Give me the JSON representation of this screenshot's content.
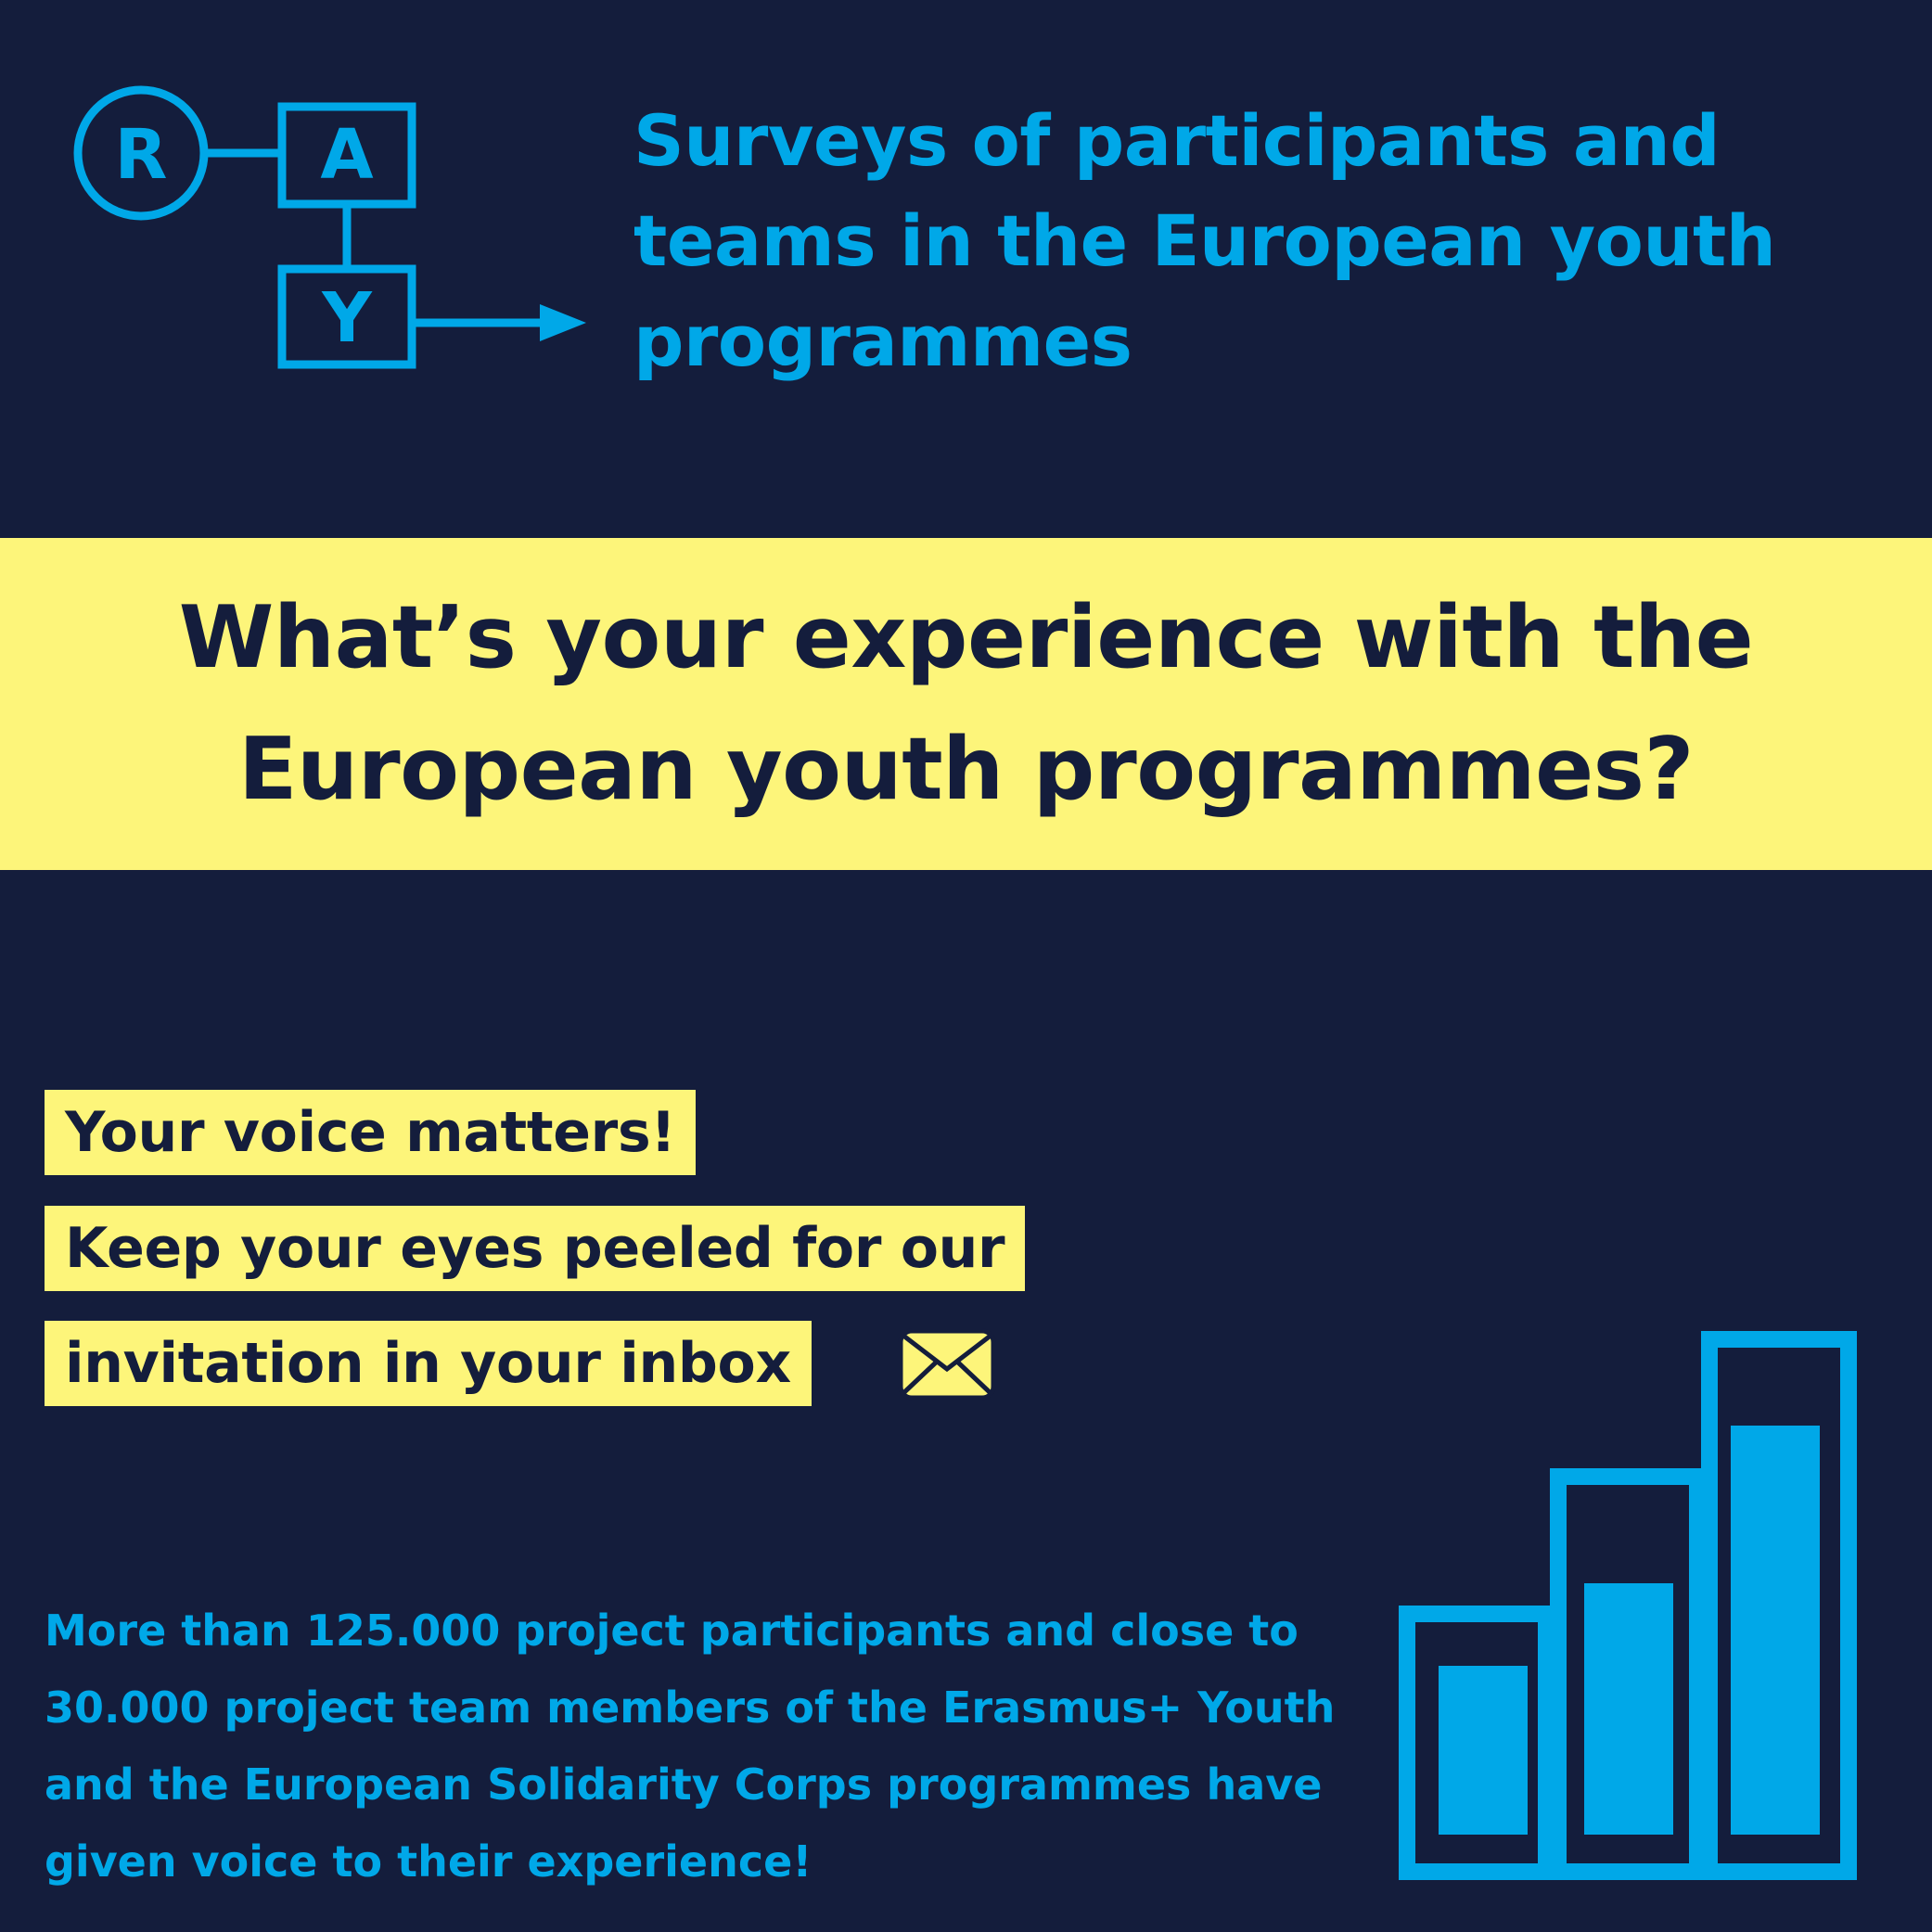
{
  "logo": {
    "letters": [
      "R",
      "A",
      "Y"
    ]
  },
  "header": {
    "title_lines": [
      "Surveys of participants and",
      "teams in the European youth",
      "programmes"
    ]
  },
  "banner": {
    "lines": [
      "What’s your experience with the",
      "European youth programmes?"
    ]
  },
  "callouts": [
    "Your voice matters!",
    "Keep your eyes peeled for our",
    "invitation in your inbox"
  ],
  "footer": {
    "lines": [
      "More than 125.000 project participants and close to",
      "30.000 project team members of the Erasmus+ Youth",
      "and the European Solidarity Corps programmes have",
      "given voice to their experience!"
    ]
  },
  "icons": {
    "envelope": "envelope-icon",
    "bars": "bar-chart-icon"
  },
  "colors": {
    "background": "#141d3c",
    "accent": "#00a8e8",
    "highlight": "#fdf57a"
  }
}
